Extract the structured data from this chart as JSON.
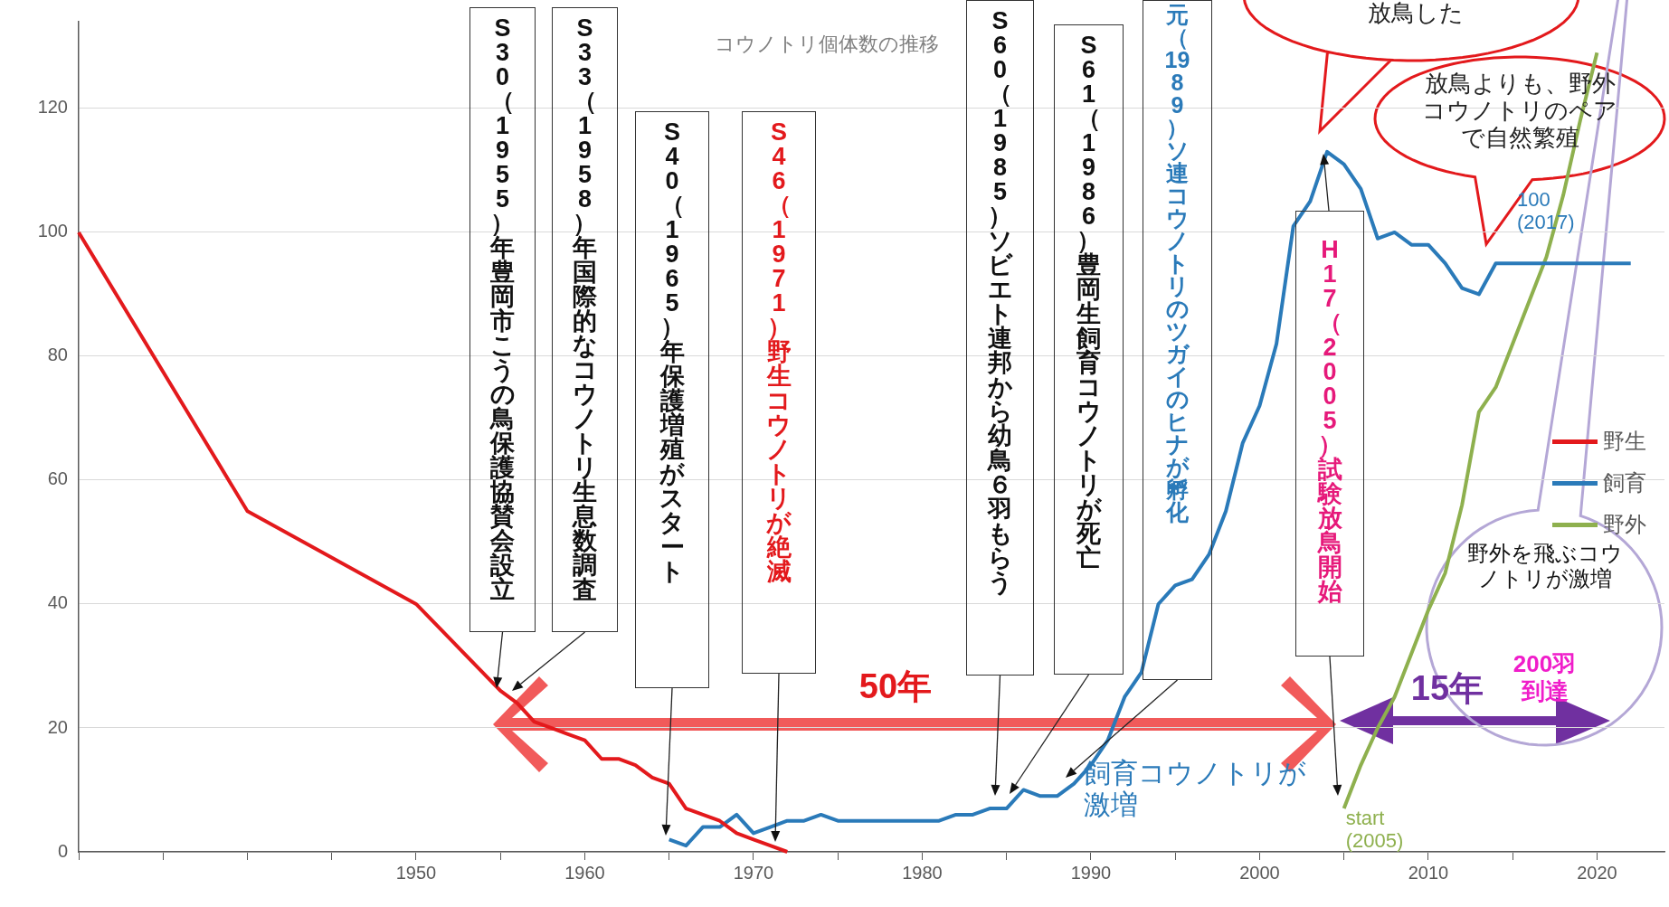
{
  "chart_data": {
    "type": "line",
    "title": "コウノトリ個体数の推移",
    "xlim": [
      1930,
      2024
    ],
    "ylim": [
      0,
      134
    ],
    "xticks": [
      {
        "value": 1930,
        "label": null
      },
      {
        "value": 1935,
        "label": null
      },
      {
        "value": 1940,
        "label": null
      },
      {
        "value": 1945,
        "label": null
      },
      1950,
      {
        "value": 1955,
        "label": null
      },
      1960,
      {
        "value": 1965,
        "label": null
      },
      1970,
      {
        "value": 1975,
        "label": null
      },
      1980,
      {
        "value": 1985,
        "label": null
      },
      1990,
      {
        "value": 1995,
        "label": null
      },
      2000,
      {
        "value": 2005,
        "label": null
      },
      2010,
      {
        "value": 2015,
        "label": null
      },
      2020
    ],
    "yticks": [
      0,
      20,
      40,
      60,
      80,
      100,
      120
    ],
    "grid": "y",
    "legend": "right",
    "marker": "none",
    "line_style": "solid",
    "series": [
      {
        "name": "野生",
        "color": "#e3191c",
        "x": [
          1930,
          1940,
          1950,
          1955,
          1956,
          1957,
          1958,
          1959,
          1960,
          1961,
          1962,
          1963,
          1964,
          1965,
          1966,
          1967,
          1968,
          1969,
          1970,
          1971,
          1972
        ],
        "values": [
          100,
          55,
          40,
          26,
          24,
          21,
          20,
          19,
          18,
          15,
          15,
          14,
          12,
          11,
          7,
          6,
          5,
          3,
          2,
          1,
          0
        ]
      },
      {
        "name": "飼育",
        "color": "#2a7ab9",
        "x": [
          1965,
          1966,
          1967,
          1968,
          1969,
          1970,
          1971,
          1972,
          1973,
          1974,
          1975,
          1976,
          1977,
          1978,
          1979,
          1980,
          1981,
          1982,
          1983,
          1984,
          1985,
          1986,
          1987,
          1988,
          1989,
          1990,
          1991,
          1992,
          1993,
          1994,
          1995,
          1996,
          1997,
          1998,
          1999,
          2000,
          2001,
          2002,
          2003,
          2004,
          2005,
          2006,
          2007,
          2008,
          2009,
          2010,
          2011,
          2012,
          2013,
          2014,
          2022
        ],
        "values": [
          2,
          1,
          4,
          4,
          6,
          3,
          4,
          5,
          5,
          6,
          5,
          5,
          5,
          5,
          5,
          5,
          5,
          6,
          6,
          7,
          7,
          10,
          9,
          9,
          11,
          14,
          18,
          25,
          29,
          40,
          43,
          44,
          48,
          55,
          66,
          72,
          82,
          101,
          105,
          113,
          111,
          107,
          99,
          100,
          98,
          98,
          95,
          91,
          90,
          95,
          95
        ]
      },
      {
        "name": "野外",
        "color": "#8eb04e",
        "x": [
          2005,
          2006,
          2007,
          2008,
          2009,
          2010,
          2011,
          2012,
          2013,
          2014,
          2015,
          2016,
          2017,
          2018,
          2019,
          2020
        ],
        "values": [
          7,
          14,
          20,
          25,
          32,
          39,
          45,
          56,
          71,
          75,
          82,
          89,
          96,
          106,
          118,
          129
        ]
      }
    ],
    "annotations": [
      "S30（1955）年豊岡市こうの鳥保護協賛会設立",
      "S33（1958）年国際的なコウノトリ生息数調査",
      "S40（1965）年保護増殖がスタート",
      "S46（1971）野生コウノトリが絶滅",
      "S60（1985）ソビエト連邦から幼鳥６羽もらう",
      "S61（1986）豊岡生飼育コウノトリが死亡",
      "元（1989）ソ連コウノトリのツガイのヒナが孵化",
      "H17（2005）試験放鳥開始",
      "50年",
      "15年",
      "飼育コウノトリが激増",
      {
        "text": "start (2005)",
        "x": 2005,
        "y": 7
      },
      "100 (2017)",
      "放鳥した",
      "放鳥よりも、野外コウノトリのペアで自然繁殖",
      "野外を飛ぶコウノトリが激増",
      "200羽到達"
    ]
  }
}
